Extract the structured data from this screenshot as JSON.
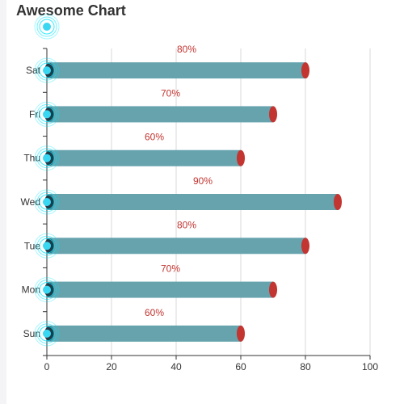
{
  "chart_data": {
    "type": "bar",
    "orientation": "horizontal",
    "title": "Awesome Chart",
    "xlabel": "",
    "ylabel": "",
    "categories": [
      "Sun",
      "Mon",
      "Tue",
      "Wed",
      "Thu",
      "Fri",
      "Sat"
    ],
    "values": [
      60,
      70,
      80,
      90,
      60,
      70,
      80
    ],
    "data_labels": [
      "60%",
      "70%",
      "80%",
      "90%",
      "60%",
      "70%",
      "80%"
    ],
    "xlim": [
      0,
      100
    ],
    "x_ticks": [
      0,
      20,
      40,
      60,
      80,
      100
    ],
    "grid": true,
    "legend": "none",
    "colors": {
      "bar": "#66a3ad",
      "bar_cap": "#c23531",
      "label": "#c23531",
      "ripple": "#00e5ff",
      "ripple_core": "#39d7f2",
      "grid": "#d9d9d9",
      "axis": "#333333"
    }
  }
}
